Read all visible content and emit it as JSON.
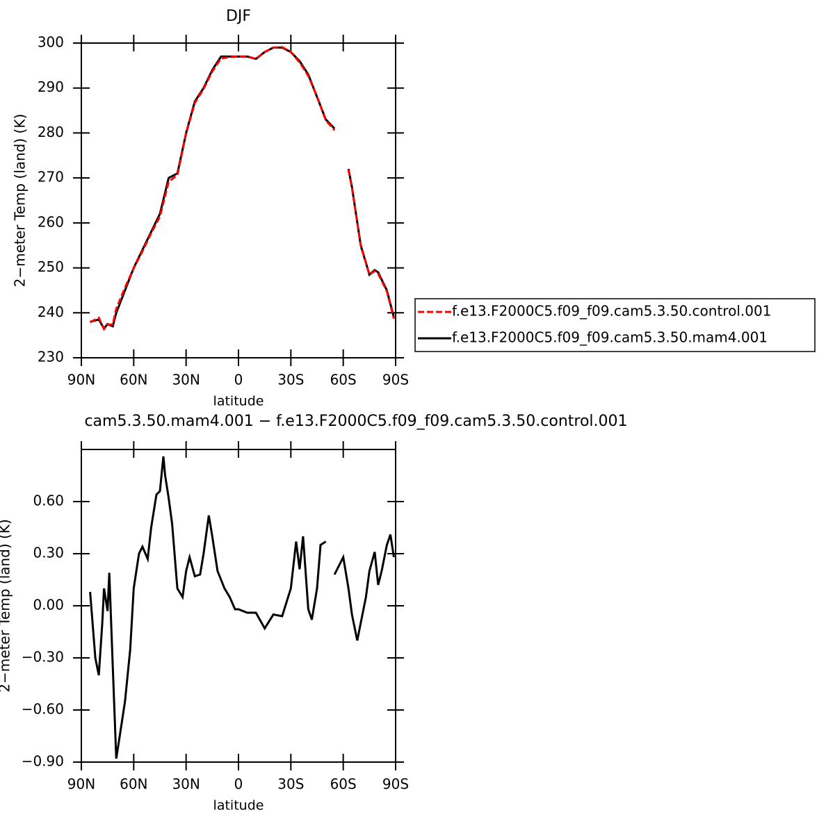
{
  "chart_data": [
    {
      "type": "line",
      "title": "DJF",
      "xlabel": "latitude",
      "ylabel": "2−meter Temp (land) (K)",
      "x": [
        85,
        80,
        77,
        75,
        72,
        70,
        65,
        60,
        55,
        50,
        45,
        40,
        35,
        30,
        25,
        20,
        15,
        10,
        5,
        0,
        -5,
        -10,
        -15,
        -20,
        -25,
        -30,
        -35,
        -40,
        -45,
        -50,
        -55,
        -60,
        -63,
        -65,
        -70,
        -75,
        -78,
        -80,
        -85,
        -89
      ],
      "xlim": [
        90,
        -90
      ],
      "xticks": [
        {
          "value": 90,
          "label": "90N"
        },
        {
          "value": 60,
          "label": "60N"
        },
        {
          "value": 30,
          "label": "30N"
        },
        0,
        {
          "value": -30,
          "label": "30S"
        },
        {
          "value": -60,
          "label": "60S"
        },
        {
          "value": -90,
          "label": "90S"
        }
      ],
      "ylim": [
        230,
        300
      ],
      "yticks": [
        230,
        240,
        250,
        260,
        270,
        280,
        290,
        300
      ],
      "legend": "right",
      "series": [
        {
          "name": "f.e13.F2000C5.f09_f09.cam5.3.50.control.001",
          "color": "#ff0000",
          "dash": true,
          "values": [
            237.9,
            238.9,
            236.4,
            237.4,
            237.4,
            240.9,
            245.6,
            249.9,
            253.7,
            257.7,
            261.4,
            269.2,
            270.6,
            279.9,
            286.7,
            289.8,
            293.7,
            296.6,
            296.9,
            297.0,
            297.0,
            296.5,
            298.0,
            299.0,
            299.1,
            298.0,
            295.7,
            292.7,
            288.1,
            282.8,
            280.6,
            null,
            271.8,
            267.8,
            255.2,
            248.5,
            249.3,
            248.7,
            244.8,
            238.7
          ]
        },
        {
          "name": "f.e13.F2000C5.f09_f09.cam5.3.50.mam4.001",
          "color": "#000000",
          "dash": false,
          "values": [
            238,
            238.5,
            236.5,
            237.5,
            237,
            240,
            245,
            250,
            254,
            258,
            262,
            270,
            271,
            280,
            287,
            290,
            294,
            297,
            297,
            297,
            297,
            296.5,
            298,
            299,
            299,
            298,
            296,
            293,
            288,
            283,
            281,
            null,
            272,
            268,
            255,
            248.5,
            249.5,
            249,
            245,
            239
          ]
        }
      ]
    },
    {
      "type": "line",
      "title": "cam5.3.50.mam4.001 − f.e13.F2000C5.f09_f09.cam5.3.50.control.001",
      "xlabel": "latitude",
      "ylabel": "2−meter Temp (land) (K)",
      "x": [
        85,
        82,
        80,
        78,
        77,
        75,
        74,
        72,
        70,
        68,
        65,
        62,
        60,
        57,
        55,
        52,
        50,
        47,
        45,
        43,
        42,
        40,
        38,
        35,
        32,
        30,
        28,
        25,
        22,
        20,
        17,
        15,
        12,
        10,
        8,
        5,
        2,
        0,
        -5,
        -10,
        -15,
        -20,
        -25,
        -30,
        -33,
        -35,
        -37,
        -40,
        -42,
        -45,
        -47,
        -50,
        -53,
        -55,
        -60,
        -63,
        -65,
        -68,
        -70,
        -73,
        -75,
        -78,
        -80,
        -82,
        -85,
        -87,
        -89
      ],
      "xlim": [
        90,
        -90
      ],
      "xticks": [
        {
          "value": 90,
          "label": "90N"
        },
        {
          "value": 60,
          "label": "60N"
        },
        {
          "value": 30,
          "label": "30N"
        },
        0,
        {
          "value": -30,
          "label": "30S"
        },
        {
          "value": -60,
          "label": "60S"
        },
        {
          "value": -90,
          "label": "90S"
        }
      ],
      "ylim": [
        -0.9,
        0.9
      ],
      "yticks": [
        {
          "value": -0.9,
          "label": "−0.90"
        },
        {
          "value": -0.6,
          "label": "−0.60"
        },
        {
          "value": -0.3,
          "label": "−0.30"
        },
        {
          "value": 0,
          "label": "0.00"
        },
        {
          "value": 0.3,
          "label": "0.30"
        },
        {
          "value": 0.6,
          "label": "0.60"
        }
      ],
      "series": [
        {
          "color": "#000000",
          "dash": false,
          "values": [
            0.08,
            -0.3,
            -0.4,
            -0.1,
            0.1,
            -0.03,
            0.19,
            -0.35,
            -0.88,
            -0.75,
            -0.55,
            -0.25,
            0.1,
            0.3,
            0.34,
            0.27,
            0.45,
            0.64,
            0.66,
            0.86,
            0.75,
            0.62,
            0.47,
            0.1,
            0.05,
            0.2,
            0.28,
            0.17,
            0.18,
            0.3,
            0.52,
            0.4,
            0.2,
            0.15,
            0.1,
            0.05,
            -0.02,
            -0.02,
            -0.04,
            -0.04,
            -0.13,
            -0.05,
            -0.06,
            0.1,
            0.37,
            0.21,
            0.4,
            -0.02,
            -0.08,
            0.1,
            0.35,
            0.37,
            null,
            0.18,
            0.28,
            0.1,
            -0.05,
            -0.2,
            -0.1,
            0.05,
            0.2,
            0.31,
            0.12,
            0.2,
            0.35,
            0.41,
            0.28
          ]
        }
      ]
    }
  ]
}
